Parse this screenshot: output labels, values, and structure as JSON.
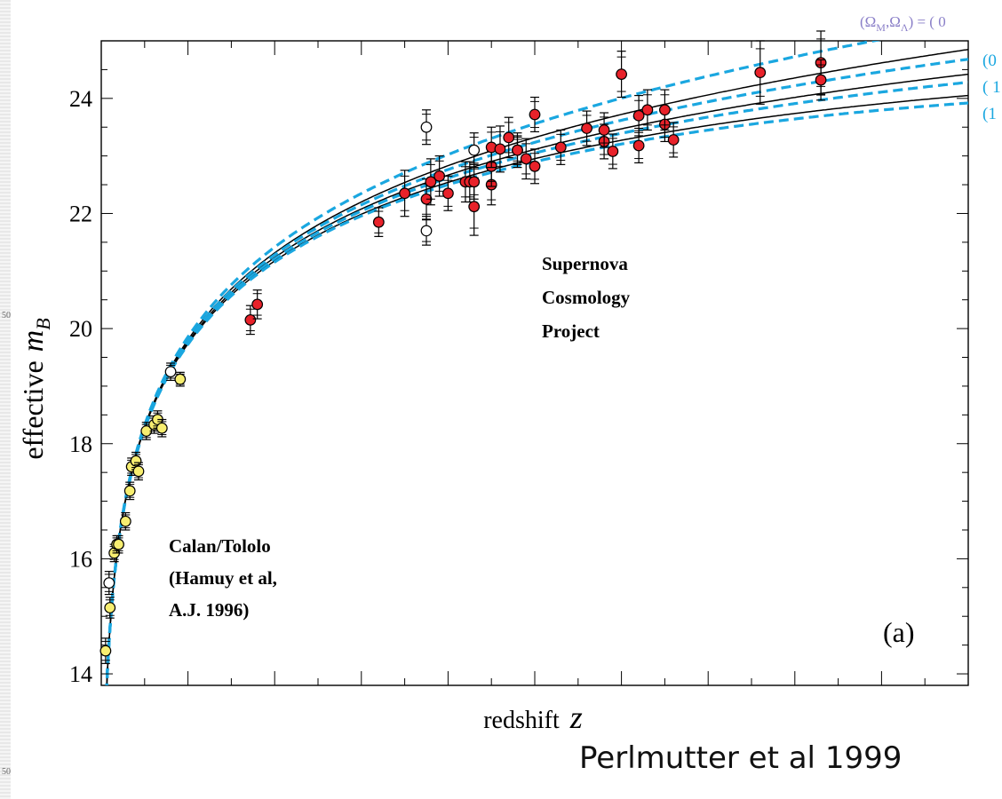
{
  "caption": "Perlmutter et al 1999",
  "edge_ticks": [
    "50",
    "50"
  ],
  "colors": {
    "red_points": "#e8222a",
    "yellow_points": "#f7ee70",
    "open_points": "#ffffff",
    "dashed_curves": "#1aa7e0",
    "solid_curves": "#000000",
    "legend_header": "#8a7fc8"
  },
  "chart_data": {
    "type": "scatter",
    "ylabel_prefix": "effective",
    "ylabel_symbol": "m",
    "ylabel_sub": "B",
    "xlabel_prefix": "redshift",
    "xlabel_symbol": "z",
    "ylim": [
      13.8,
      25.0
    ],
    "xlim": [
      0.0,
      1.0
    ],
    "x_axis_scale": "linear, unlabeled ticks",
    "yticks": [
      14,
      16,
      18,
      20,
      22,
      24
    ],
    "panel_label": "(a)",
    "annotations": [
      {
        "id": "scp",
        "lines": [
          "Supernova",
          "Cosmology",
          "Project"
        ],
        "x": 0.5,
        "y": 20.3
      },
      {
        "id": "calan",
        "lines": [
          "Calan/Tololo",
          "(Hamuy et al,",
          "A.J. 1996)"
        ],
        "x": 0.07,
        "y": 15.4
      }
    ],
    "legend": {
      "header": "(Ω",
      "header_sub1": "M",
      "header_mid": ",Ω",
      "header_sub2": "Λ",
      "header_tail": ") = ( 0",
      "entries": [
        "(0",
        "( 1",
        "(1"
      ],
      "placement": "top-right, clipped by image edge"
    },
    "curves": [
      {
        "style": "dashed",
        "m_at_1": 25.3
      },
      {
        "style": "solid",
        "m_at_1": 24.85
      },
      {
        "style": "dashed",
        "m_at_1": 24.68
      },
      {
        "style": "solid",
        "m_at_1": 24.42
      },
      {
        "style": "dashed",
        "m_at_1": 24.28
      },
      {
        "style": "solid",
        "m_at_1": 24.05
      },
      {
        "style": "dashed",
        "m_at_1": 23.92
      }
    ],
    "series": [
      {
        "kind": "calan_tololo",
        "marker": "yellow",
        "points": [
          [
            0.005,
            14.4,
            0.22
          ],
          [
            0.01,
            15.15,
            0.18
          ],
          [
            0.015,
            16.1,
            0.15
          ],
          [
            0.018,
            16.25,
            0.15
          ],
          [
            0.02,
            16.25,
            0.15
          ],
          [
            0.028,
            16.65,
            0.15
          ],
          [
            0.033,
            17.18,
            0.15
          ],
          [
            0.035,
            17.6,
            0.15
          ],
          [
            0.04,
            17.7,
            0.15
          ],
          [
            0.043,
            17.52,
            0.15
          ],
          [
            0.052,
            18.22,
            0.15
          ],
          [
            0.061,
            18.33,
            0.15
          ],
          [
            0.065,
            18.42,
            0.15
          ],
          [
            0.07,
            18.27,
            0.15
          ],
          [
            0.091,
            19.12,
            0.12
          ]
        ]
      },
      {
        "kind": "excluded",
        "marker": "open",
        "points": [
          [
            0.009,
            15.58,
            0.2
          ],
          [
            0.08,
            19.25,
            0.15
          ],
          [
            0.375,
            23.5,
            0.3
          ],
          [
            0.375,
            21.7,
            0.25
          ],
          [
            0.43,
            23.1,
            0.3
          ],
          [
            0.48,
            23.1,
            0.25
          ]
        ]
      },
      {
        "kind": "scp",
        "marker": "red",
        "points": [
          [
            0.172,
            20.15,
            0.25
          ],
          [
            0.18,
            20.42,
            0.25
          ],
          [
            0.32,
            21.85,
            0.25
          ],
          [
            0.35,
            22.35,
            0.4
          ],
          [
            0.375,
            22.25,
            0.35
          ],
          [
            0.38,
            22.55,
            0.4
          ],
          [
            0.39,
            22.65,
            0.35
          ],
          [
            0.4,
            22.35,
            0.3
          ],
          [
            0.42,
            22.55,
            0.35
          ],
          [
            0.425,
            22.55,
            0.35
          ],
          [
            0.43,
            22.12,
            0.5
          ],
          [
            0.43,
            22.55,
            0.3
          ],
          [
            0.45,
            22.5,
            0.35
          ],
          [
            0.45,
            22.82,
            0.35
          ],
          [
            0.45,
            23.15,
            0.35
          ],
          [
            0.46,
            23.12,
            0.4
          ],
          [
            0.47,
            23.32,
            0.35
          ],
          [
            0.48,
            23.1,
            0.3
          ],
          [
            0.49,
            22.95,
            0.35
          ],
          [
            0.5,
            22.82,
            0.3
          ],
          [
            0.5,
            23.72,
            0.3
          ],
          [
            0.53,
            23.15,
            0.3
          ],
          [
            0.56,
            23.48,
            0.3
          ],
          [
            0.58,
            23.25,
            0.3
          ],
          [
            0.58,
            23.45,
            0.3
          ],
          [
            0.59,
            23.08,
            0.3
          ],
          [
            0.6,
            24.42,
            0.4
          ],
          [
            0.62,
            23.7,
            0.35
          ],
          [
            0.62,
            23.18,
            0.3
          ],
          [
            0.63,
            23.8,
            0.35
          ],
          [
            0.65,
            23.55,
            0.3
          ],
          [
            0.65,
            23.8,
            0.35
          ],
          [
            0.66,
            23.28,
            0.3
          ],
          [
            0.76,
            24.45,
            0.55
          ],
          [
            0.83,
            24.62,
            0.55
          ],
          [
            0.83,
            24.32,
            0.35
          ]
        ]
      }
    ]
  }
}
